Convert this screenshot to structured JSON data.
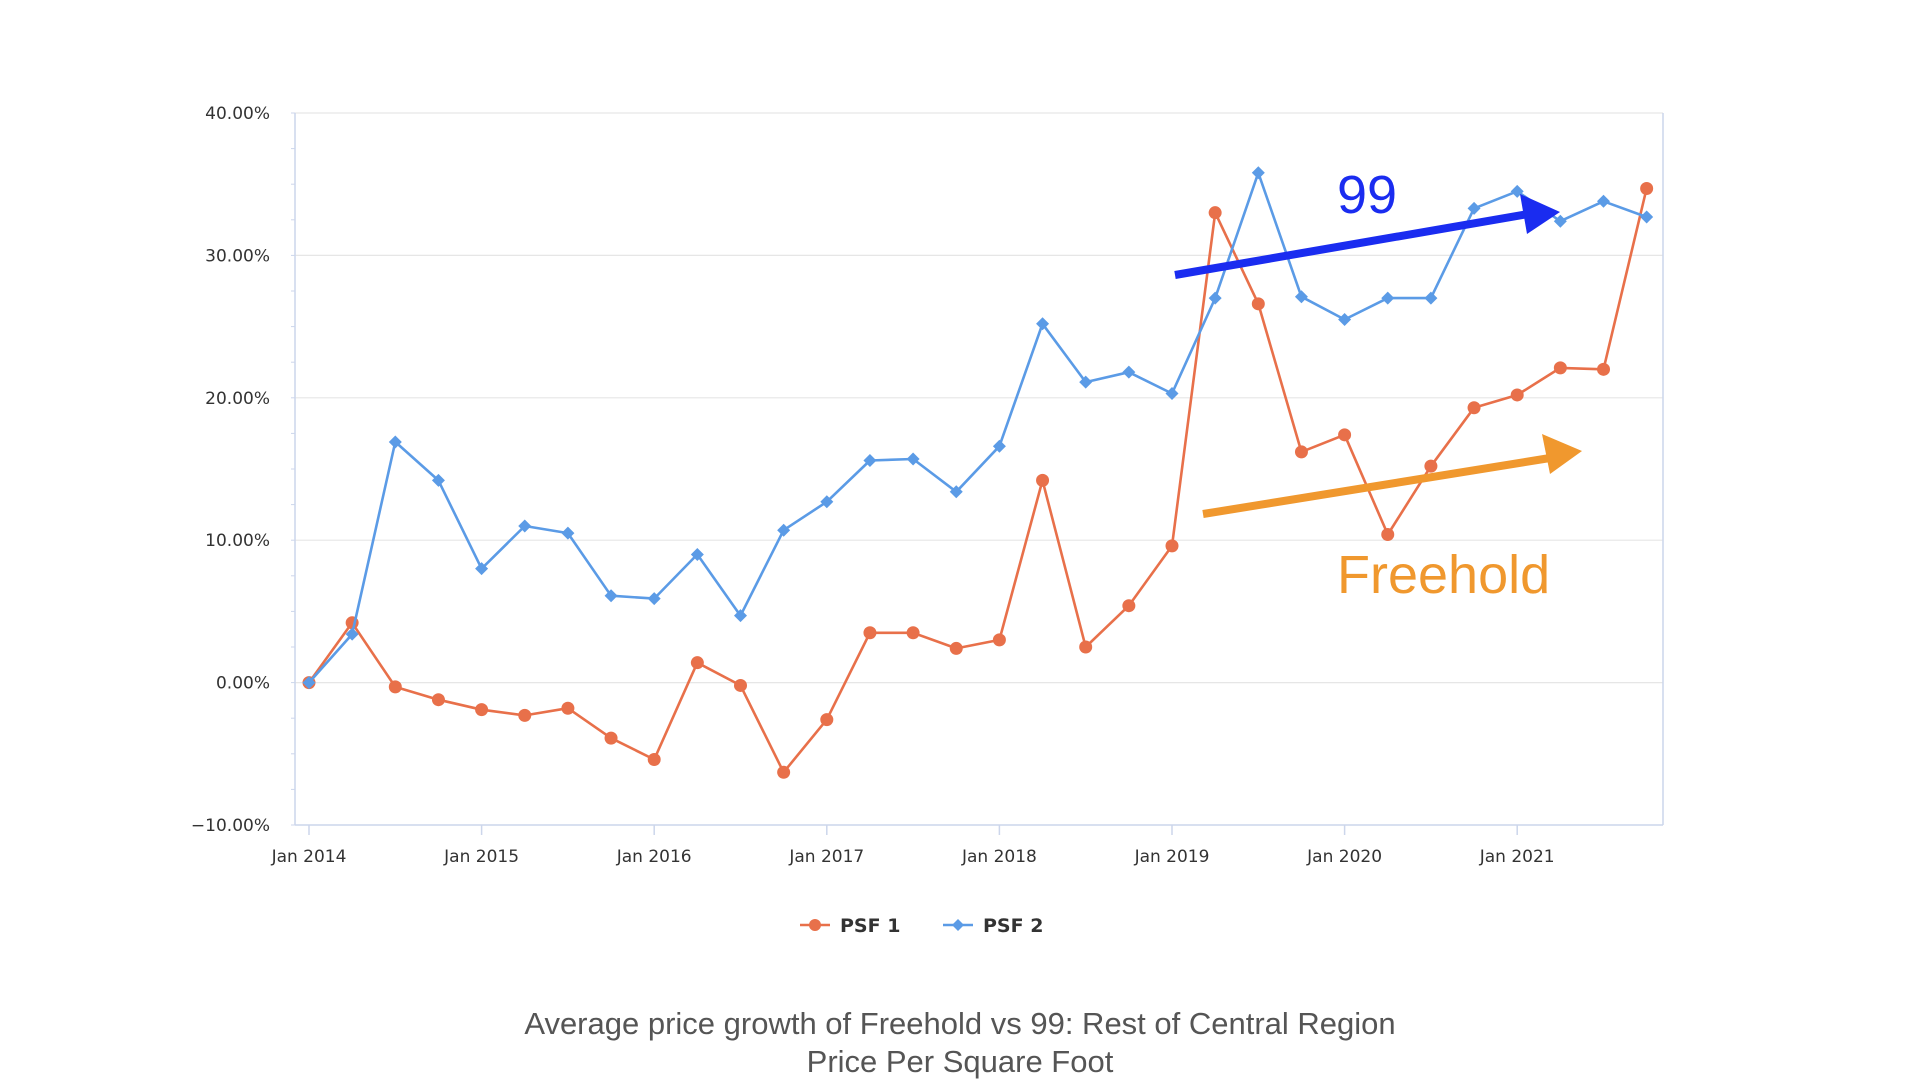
{
  "chart_data": {
    "type": "line",
    "title": "Average price growth of Freehold vs 99:  Rest of Central Region",
    "subtitle": "Price Per Square Foot",
    "xlabel": "",
    "ylabel": "",
    "ylim": [
      -10,
      40
    ],
    "y_ticks": [
      "40.00%",
      "30.00%",
      "20.00%",
      "10.00%",
      "0.00%",
      "−10.00%"
    ],
    "x_tick_labels": [
      "Jan 2014",
      "Jan 2015",
      "Jan 2016",
      "Jan 2017",
      "Jan 2018",
      "Jan 2019",
      "Jan 2020",
      "Jan 2021"
    ],
    "x_start_year": 2014,
    "x_end_year": 2021.833,
    "grid": true,
    "legend_position": "bottom-center",
    "x": [
      2014.0,
      2014.25,
      2014.5,
      2014.75,
      2015.0,
      2015.25,
      2015.5,
      2015.75,
      2016.0,
      2016.25,
      2016.5,
      2016.75,
      2017.0,
      2017.25,
      2017.5,
      2017.75,
      2018.0,
      2018.25,
      2018.5,
      2018.75,
      2019.0,
      2019.25,
      2019.5,
      2019.75,
      2020.0,
      2020.25,
      2020.5,
      2020.75,
      2021.0,
      2021.25,
      2021.5,
      2021.75
    ],
    "series": [
      {
        "name": "PSF 1",
        "color": "#e8704a",
        "marker": "circle",
        "values": [
          0.0,
          4.2,
          -0.3,
          -1.2,
          -1.9,
          -2.3,
          -1.8,
          -3.9,
          -5.4,
          1.4,
          -0.2,
          -6.3,
          -2.6,
          3.5,
          3.5,
          2.4,
          3.0,
          14.2,
          2.5,
          5.4,
          9.6,
          33.0,
          26.6,
          16.2,
          17.4,
          10.4,
          15.2,
          19.3,
          20.2,
          22.1,
          22.0,
          34.7
        ]
      },
      {
        "name": "PSF 2",
        "color": "#5b9be6",
        "marker": "diamond",
        "values": [
          0.0,
          3.4,
          16.9,
          14.2,
          8.0,
          11.0,
          10.5,
          6.1,
          5.9,
          9.0,
          4.7,
          10.7,
          12.7,
          15.6,
          15.7,
          13.4,
          16.6,
          25.2,
          21.1,
          21.8,
          20.3,
          27.0,
          35.8,
          27.1,
          25.5,
          27.0,
          27.0,
          33.3,
          34.5,
          32.4,
          33.8,
          32.7
        ]
      }
    ],
    "annotations": [
      {
        "text": "99",
        "color": "#1a2cf0"
      },
      {
        "text": "Freehold",
        "color": "#f0982e"
      }
    ]
  },
  "colors": {
    "axis": "#ccd6eb",
    "grid": "#e6e6e6",
    "tick_text": "#333333",
    "caption": "#555555"
  }
}
